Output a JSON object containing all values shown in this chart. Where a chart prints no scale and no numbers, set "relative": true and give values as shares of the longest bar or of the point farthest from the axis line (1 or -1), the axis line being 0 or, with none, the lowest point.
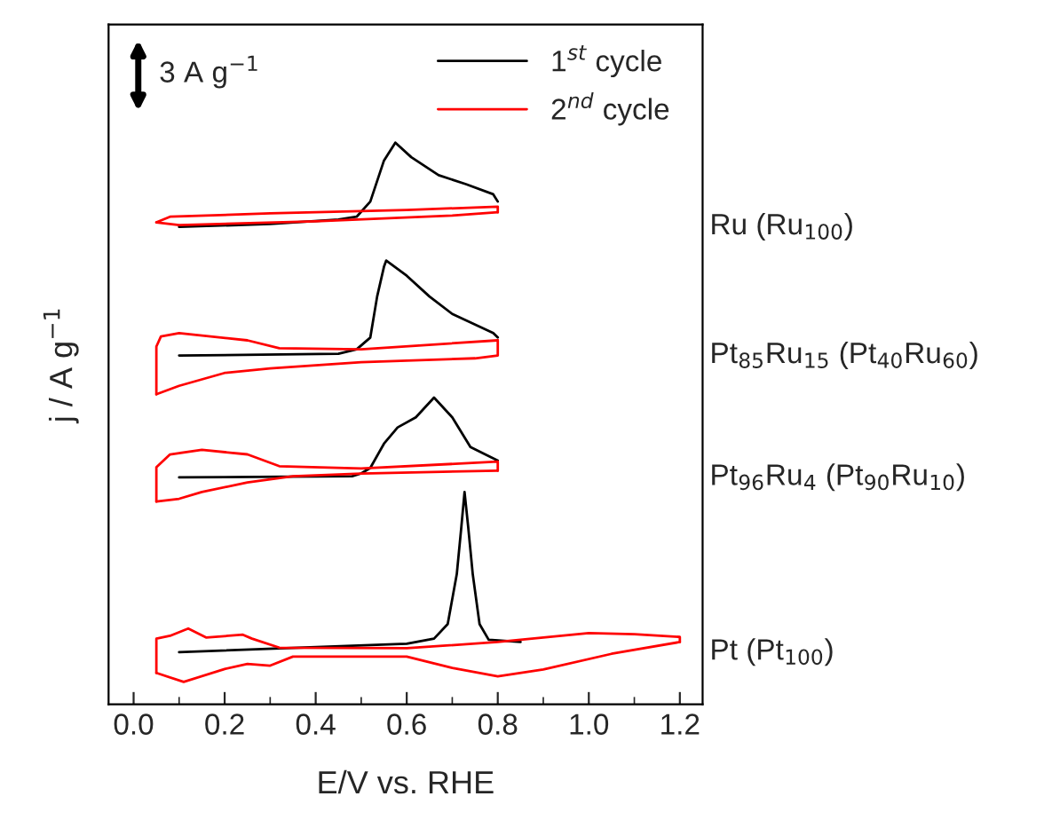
{
  "chart_data": {
    "type": "line",
    "relative": true,
    "xlabel": "E/V vs. RHE",
    "ylabel": "j / A g$^{−1}$",
    "xlim": [
      -0.055,
      1.25
    ],
    "xticks": [
      {
        "value": 0,
        "label": "0.0"
      },
      0.2,
      0.4,
      0.6,
      0.8,
      {
        "value": 1,
        "label": "1.0"
      },
      1.2
    ],
    "legend": "top right",
    "grid": false,
    "line_style": "solid",
    "marker": "none",
    "annotations": [
      "3 A g$^{−1}$",
      "Ru (Ru$_{100}$)",
      "Pt$_{85}$Ru$_{15}$ (Pt$_{40}$Ru$_{60}$)",
      "Pt$_{96}$Ru$_{4}$ (Pt$_{90}$Ru$_{10}$)",
      "Pt (Pt$_{100}$)"
    ],
    "series": [
      {
        "name": "1$^{st}$ cycle",
        "color": "#000000",
        "x": [
          0.1,
          0.3,
          0.45,
          0.49,
          0.52,
          0.55,
          0.575,
          0.61,
          0.67,
          0.73,
          0.79,
          0.8
        ],
        "values": [
          0.85,
          0.855,
          0.863,
          0.868,
          0.895,
          0.968,
          1.0,
          0.974,
          0.942,
          0.926,
          0.908,
          0.895
        ]
      },
      {
        "name": "2$^{nd}$ cycle",
        "color": "#ff0000",
        "x": [
          0.05,
          0.1,
          0.4,
          0.7,
          0.8
        ],
        "values": [
          0.858,
          0.853,
          0.86,
          0.87,
          0.876
        ]
      },
      {
        "color": "#ff0000",
        "x": [
          0.8,
          0.8,
          0.6,
          0.3,
          0.08,
          0.05
        ],
        "values": [
          0.876,
          0.886,
          0.88,
          0.874,
          0.868,
          0.858
        ]
      },
      {
        "color": "#000000",
        "x": [
          0.1,
          0.45,
          0.49,
          0.52,
          0.535,
          0.55,
          0.555,
          0.6,
          0.65,
          0.7,
          0.79,
          0.8
        ],
        "values": [
          0.621,
          0.624,
          0.632,
          0.653,
          0.726,
          0.779,
          0.79,
          0.763,
          0.726,
          0.695,
          0.661,
          0.653
        ]
      },
      {
        "color": "#ff0000",
        "x": [
          0.05,
          0.05,
          0.06,
          0.1,
          0.25,
          0.32,
          0.5,
          0.8
        ],
        "values": [
          0.552,
          0.637,
          0.655,
          0.661,
          0.648,
          0.634,
          0.632,
          0.648
        ]
      },
      {
        "color": "#ff0000",
        "x": [
          0.8,
          0.8,
          0.75,
          0.5,
          0.3,
          0.2,
          0.1,
          0.05
        ],
        "values": [
          0.648,
          0.621,
          0.616,
          0.609,
          0.598,
          0.59,
          0.567,
          0.552
        ]
      },
      {
        "color": "#000000",
        "x": [
          0.1,
          0.48,
          0.5,
          0.52,
          0.55,
          0.58,
          0.62,
          0.66,
          0.7,
          0.74,
          0.8
        ],
        "values": [
          0.404,
          0.406,
          0.411,
          0.421,
          0.464,
          0.493,
          0.511,
          0.546,
          0.511,
          0.458,
          0.434
        ]
      },
      {
        "color": "#ff0000",
        "x": [
          0.05,
          0.05,
          0.08,
          0.15,
          0.25,
          0.32,
          0.5,
          0.8,
          0.8
        ],
        "values": [
          0.361,
          0.422,
          0.445,
          0.453,
          0.445,
          0.424,
          0.42,
          0.432,
          0.416
        ]
      },
      {
        "color": "#ff0000",
        "x": [
          0.8,
          0.5,
          0.35,
          0.25,
          0.15,
          0.1,
          0.05
        ],
        "values": [
          0.416,
          0.411,
          0.406,
          0.395,
          0.378,
          0.366,
          0.361
        ]
      },
      {
        "color": "#000000",
        "x": [
          0.1,
          0.6,
          0.66,
          0.69,
          0.71,
          0.72,
          0.727,
          0.735,
          0.745,
          0.76,
          0.78,
          0.85
        ],
        "values": [
          0.093,
          0.108,
          0.117,
          0.143,
          0.232,
          0.316,
          0.378,
          0.316,
          0.232,
          0.143,
          0.115,
          0.111
        ]
      },
      {
        "color": "#ff0000",
        "x": [
          0.05,
          0.05,
          0.08,
          0.12,
          0.16,
          0.24,
          0.26,
          0.32,
          0.6,
          0.8,
          1.0,
          1.1,
          1.2,
          1.2
        ],
        "values": [
          0.056,
          0.117,
          0.122,
          0.135,
          0.119,
          0.124,
          0.117,
          0.101,
          0.1,
          0.111,
          0.127,
          0.125,
          0.12,
          0.111
        ]
      },
      {
        "color": "#ff0000",
        "x": [
          1.2,
          1.05,
          0.9,
          0.8,
          0.7,
          0.6,
          0.35,
          0.3,
          0.25,
          0.2,
          0.11,
          0.05
        ],
        "values": [
          0.111,
          0.09,
          0.062,
          0.05,
          0.065,
          0.085,
          0.085,
          0.069,
          0.072,
          0.063,
          0.04,
          0.056
        ]
      }
    ]
  }
}
